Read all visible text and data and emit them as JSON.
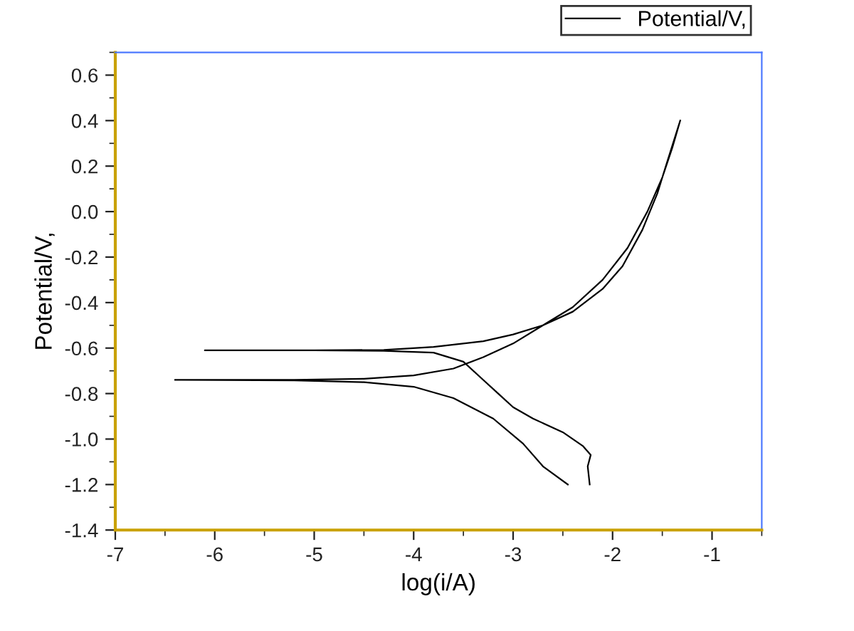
{
  "chart_data": {
    "type": "line",
    "xlabel": "log(i/A)",
    "ylabel": "Potential/V,",
    "xlim": [
      -7,
      -0.5
    ],
    "ylim": [
      -1.4,
      0.7
    ],
    "xticks": [
      -7,
      -6,
      -5,
      -4,
      -3,
      -2,
      -1
    ],
    "yticks": [
      -1.4,
      -1.2,
      {
        "value": -1,
        "label": "-1.0"
      },
      -0.8,
      -0.6,
      -0.4,
      -0.2,
      {
        "value": 0,
        "label": "0.0"
      },
      0.2,
      0.4,
      0.6
    ],
    "grid": false,
    "legend": "top right",
    "marker": "none",
    "line_style": "solid",
    "series": [
      {
        "name": "Potential/V,",
        "color": "#000000",
        "x": [
          -2.23,
          -2.25,
          -2.22,
          -2.3,
          -2.5,
          -2.8,
          -3.0,
          -3.15,
          -3.3,
          -3.5,
          -3.8,
          -4.3,
          -5.0,
          -6.1,
          -5.0,
          -4.3,
          -3.8,
          -3.3,
          -3.0,
          -2.7,
          -2.4,
          -2.1,
          -1.9,
          -1.7,
          -1.55,
          -1.45,
          -1.32,
          null,
          -2.45,
          -2.7,
          -2.9,
          -3.2,
          -3.6,
          -4.0,
          -4.5,
          -5.2,
          -6.4,
          -5.2,
          -4.5,
          -4.0,
          -3.6,
          -3.3,
          -3.0,
          -2.7,
          -2.4,
          -2.1,
          -1.85,
          -1.65,
          -1.5,
          -1.4,
          -1.32
        ],
        "values": [
          -1.2,
          -1.12,
          -1.07,
          -1.03,
          -0.97,
          -0.91,
          -0.86,
          -0.8,
          -0.74,
          -0.66,
          -0.62,
          -0.612,
          -0.61,
          -0.61,
          -0.61,
          -0.608,
          -0.595,
          -0.57,
          -0.54,
          -0.5,
          -0.44,
          -0.34,
          -0.24,
          -0.08,
          0.08,
          0.22,
          0.4,
          null,
          -1.2,
          -1.12,
          -1.02,
          -0.91,
          -0.82,
          -0.77,
          -0.75,
          -0.742,
          -0.74,
          -0.74,
          -0.735,
          -0.72,
          -0.69,
          -0.64,
          -0.58,
          -0.5,
          -0.42,
          -0.3,
          -0.16,
          0.0,
          0.15,
          0.28,
          0.4
        ]
      }
    ]
  }
}
